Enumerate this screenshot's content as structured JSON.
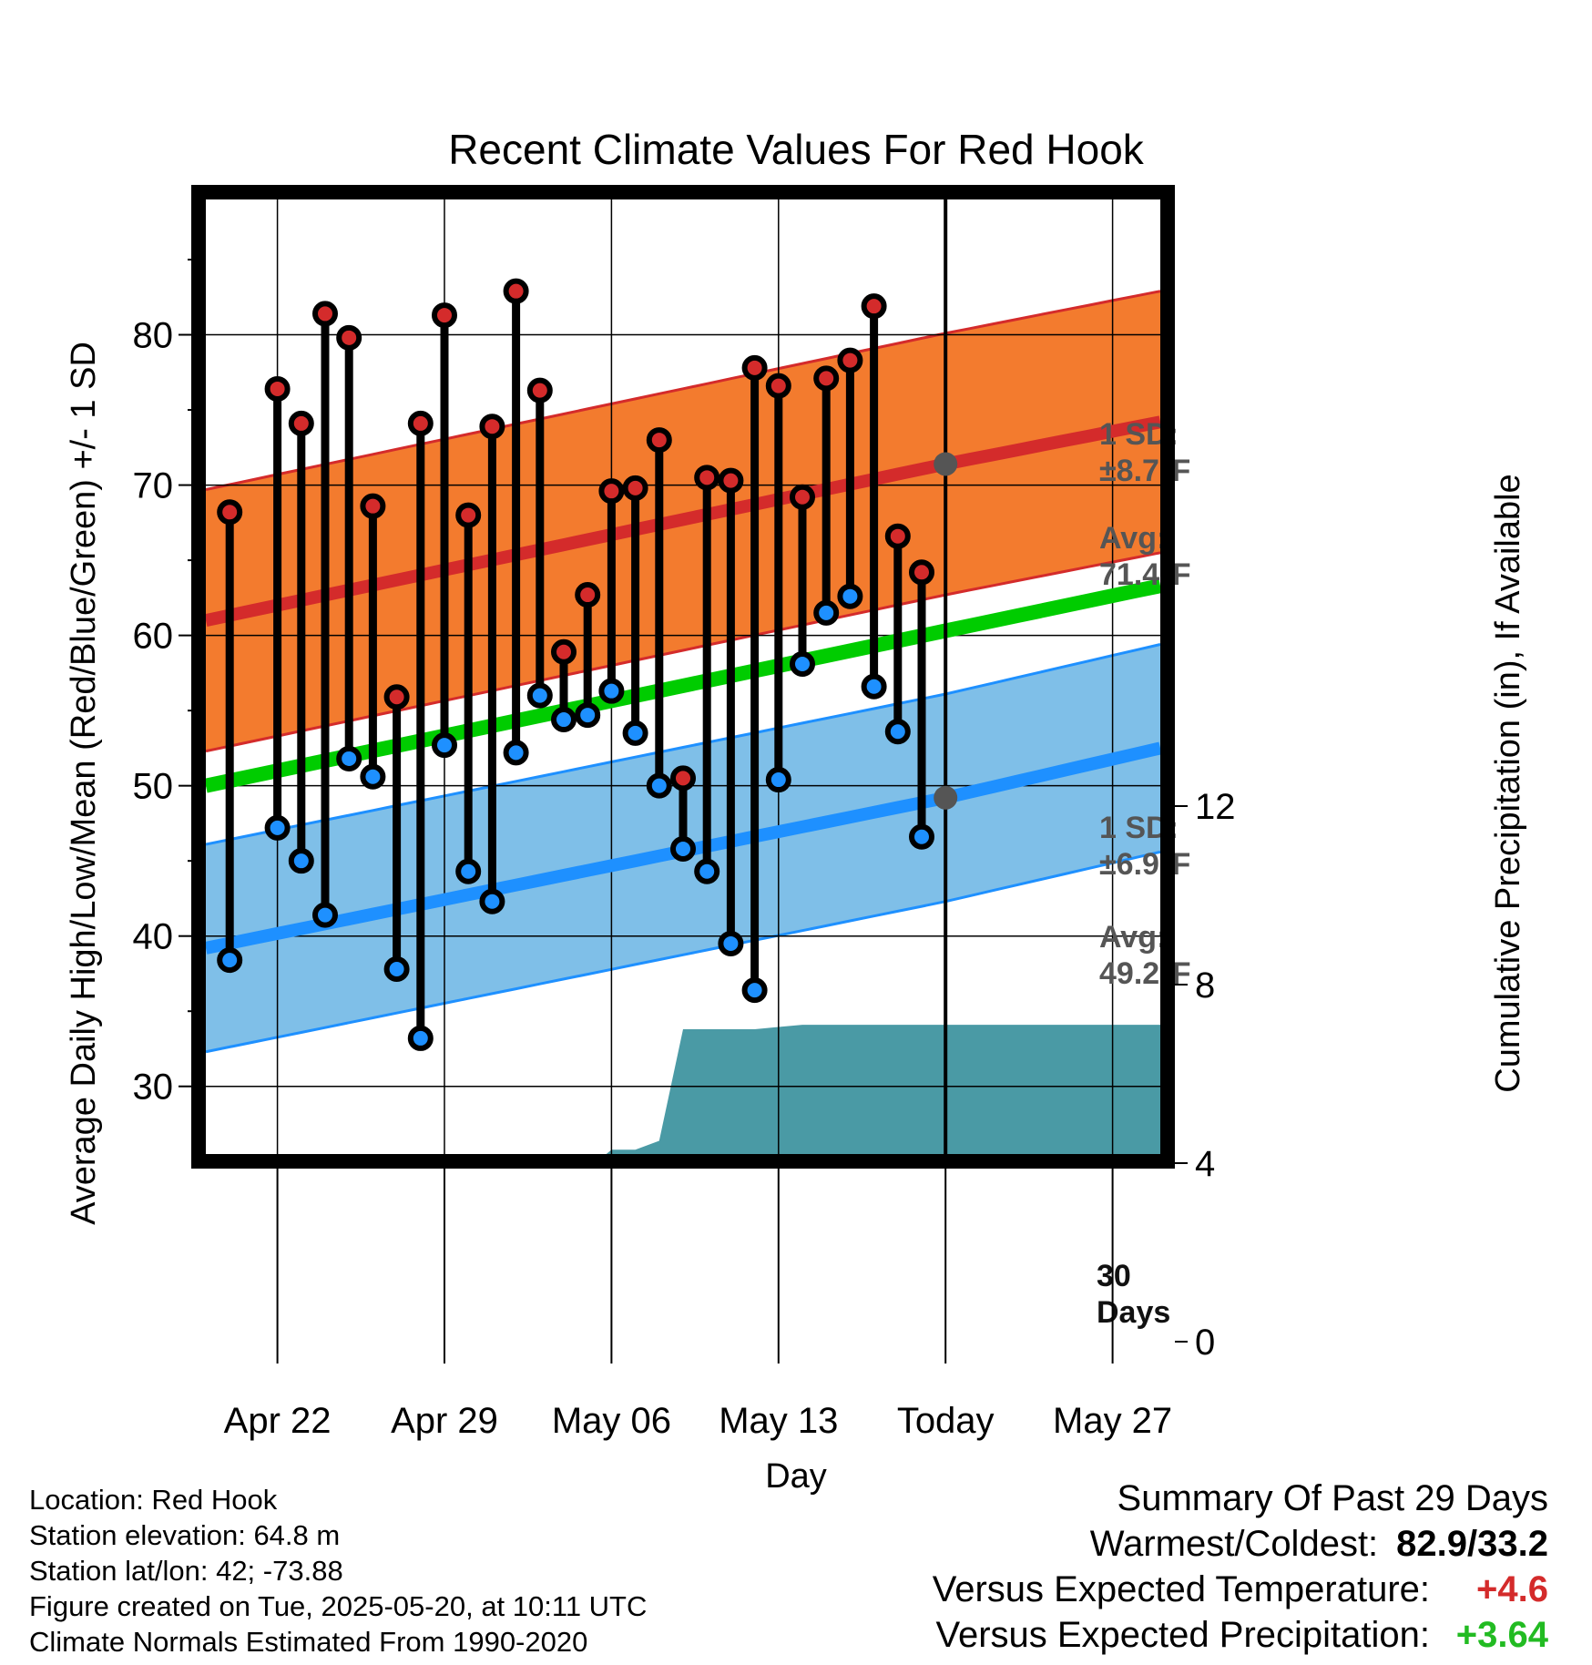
{
  "chart_data": {
    "type": "line",
    "title": "Recent Climate Values For Red Hook",
    "xlabel": "Day",
    "ylabel": "Average Daily High/Low/Mean (Red/Blue/Green) +/- 1 SD",
    "y2label": "Cumulative Precipitation (in), If Available",
    "x_ticks": [
      "Apr 22",
      "Apr 29",
      "May 06",
      "May 13",
      "Today",
      "May 27"
    ],
    "y_ticks": [
      30,
      40,
      50,
      60,
      70,
      80
    ],
    "y2_ticks": [
      0,
      4,
      8,
      12
    ],
    "xlim": [
      "Apr 19",
      "May 29"
    ],
    "ylim": [
      25.5,
      89
    ],
    "y2lim": [
      0,
      24
    ],
    "today": "May 20",
    "today_label": "30 Days",
    "normals": {
      "high": {
        "start": 61.0,
        "today": 71.4,
        "end": 74.2,
        "sd": 8.7
      },
      "low": {
        "start": 39.2,
        "today": 49.2,
        "end": 52.5,
        "sd": 6.9
      },
      "mean": {
        "start": 50.0,
        "end": 63.3
      },
      "colors": {
        "high_band": "#f37b2e",
        "high_line": "#d42b2b",
        "low_band": "#7fbfe8",
        "low_line": "#1e90ff",
        "mean_line": "#00cc00"
      }
    },
    "annotations": {
      "high_sd": "1 SD:",
      "high_sd_val": "±8.7°F",
      "high_avg": "Avg:",
      "high_avg_val": "71.4°F",
      "low_sd": "1 SD:",
      "low_sd_val": "±6.9°F",
      "low_avg": "Avg:",
      "low_avg_val": "49.2°F"
    },
    "series": [
      {
        "name": "High",
        "color": "#d42b2b",
        "x": [
          "Apr 20",
          "Apr 22",
          "Apr 23",
          "Apr 24",
          "Apr 25",
          "Apr 26",
          "Apr 27",
          "Apr 28",
          "Apr 29",
          "Apr 30",
          "May 01",
          "May 02",
          "May 03",
          "May 04",
          "May 05",
          "May 06",
          "May 07",
          "May 08",
          "May 09",
          "May 10",
          "May 11",
          "May 12",
          "May 13",
          "May 14",
          "May 15",
          "May 16",
          "May 17",
          "May 18",
          "May 19"
        ],
        "values": [
          68.2,
          76.4,
          74.1,
          81.4,
          79.8,
          68.6,
          55.9,
          74.1,
          81.3,
          68.0,
          73.9,
          82.9,
          76.3,
          58.9,
          62.7,
          69.6,
          69.8,
          73.0,
          50.5,
          70.5,
          70.3,
          77.8,
          76.6,
          69.2,
          77.1,
          78.3,
          81.9,
          66.6,
          64.2
        ]
      },
      {
        "name": "Low",
        "color": "#1e90ff",
        "x": [
          "Apr 20",
          "Apr 22",
          "Apr 23",
          "Apr 24",
          "Apr 25",
          "Apr 26",
          "Apr 27",
          "Apr 28",
          "Apr 29",
          "Apr 30",
          "May 01",
          "May 02",
          "May 03",
          "May 04",
          "May 05",
          "May 06",
          "May 07",
          "May 08",
          "May 09",
          "May 10",
          "May 11",
          "May 12",
          "May 13",
          "May 14",
          "May 15",
          "May 16",
          "May 17",
          "May 18",
          "May 19"
        ],
        "values": [
          38.4,
          47.2,
          45.0,
          41.4,
          51.8,
          50.6,
          37.8,
          33.2,
          52.7,
          44.3,
          42.3,
          52.2,
          56.0,
          54.4,
          54.7,
          56.3,
          53.5,
          50.0,
          45.8,
          44.3,
          39.5,
          36.4,
          50.4,
          58.1,
          61.5,
          62.6,
          56.6,
          53.6,
          46.6
        ]
      },
      {
        "name": "Cumulative Precipitation",
        "color": "#4a9aa5",
        "x": [
          "Apr 25",
          "Apr 26",
          "May 01",
          "May 02",
          "May 03",
          "May 04",
          "May 05",
          "May 06",
          "May 07",
          "May 08",
          "May 09",
          "May 12",
          "May 13",
          "May 14",
          "May 29"
        ],
        "values": [
          0.0,
          1.05,
          1.05,
          1.12,
          2.4,
          3.1,
          3.85,
          4.3,
          4.3,
          4.5,
          7.0,
          7.0,
          7.05,
          7.1,
          7.1
        ]
      }
    ]
  },
  "footer": {
    "location": "Location: Red Hook",
    "elevation": "Station elevation: 64.8 m",
    "latlon": "Station lat/lon: 42; -73.88",
    "created": "Figure created on Tue, 2025-05-20, at 10:11 UTC",
    "normals": "Climate Normals Estimated From 1990-2020"
  },
  "summary": {
    "heading": "Summary Of Past 29 Days",
    "warm_cold_label": "Warmest/Coldest:",
    "warm_cold_value": "82.9/33.2",
    "temp_label": "Versus Expected Temperature:",
    "temp_value": "+4.6",
    "temp_color": "#d42b2b",
    "precip_label": "Versus Expected Precipitation:",
    "precip_value": "+3.64",
    "precip_color": "#22bb22"
  }
}
